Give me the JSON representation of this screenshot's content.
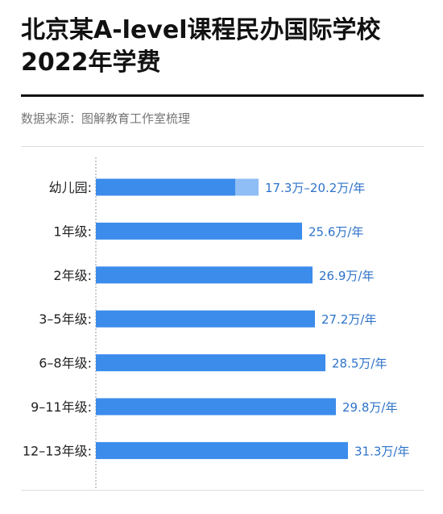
{
  "header": {
    "title": "北京某A-level课程民办国际学校2022年学费",
    "source": "数据来源：图解教育工作室梳理"
  },
  "colors": {
    "bar": "#3b8ceb",
    "bar_range": "#8fbdf5",
    "value_text": "#2e73c9",
    "axis": "#999999"
  },
  "chart_data": {
    "type": "bar",
    "orientation": "horizontal",
    "title": "北京某A-level课程民办国际学校2022年学费",
    "xlabel": "",
    "ylabel": "",
    "unit": "万/年",
    "xlim": [
      0,
      38
    ],
    "grid": false,
    "categories": [
      "幼儿园:",
      "1年级:",
      "2年级:",
      "3–5年级:",
      "6–8年级:",
      "9–11年级:",
      "12–13年级:"
    ],
    "values": [
      17.3,
      25.6,
      26.9,
      27.2,
      28.5,
      29.8,
      31.3
    ],
    "range_high": [
      20.2,
      null,
      null,
      null,
      null,
      null,
      null
    ],
    "data_labels": [
      "17.3万–20.2万/年",
      "25.6万/年",
      "26.9万/年",
      "27.2万/年",
      "28.5万/年",
      "29.8万/年",
      "31.3万/年"
    ]
  }
}
